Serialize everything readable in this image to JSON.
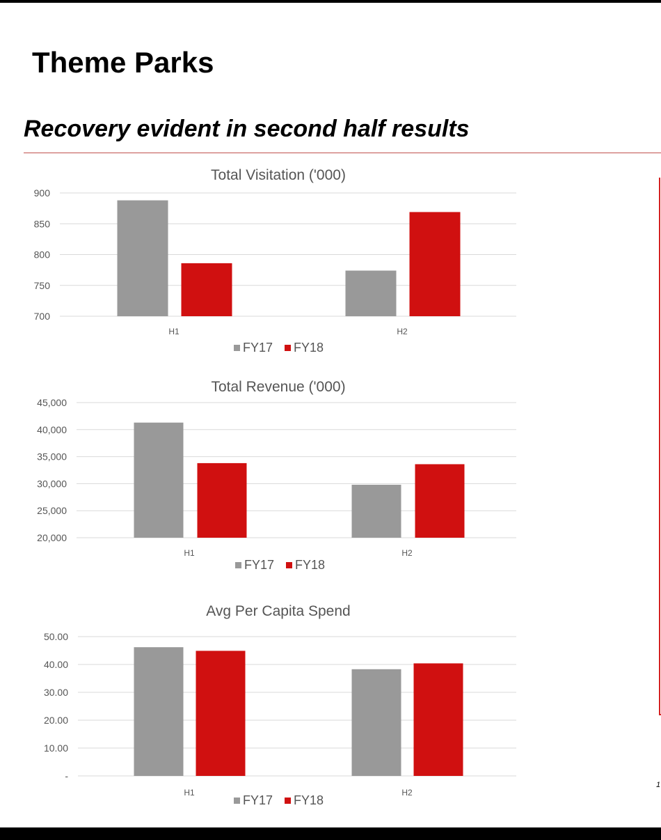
{
  "page": {
    "title": "Theme Parks",
    "subtitle": "Recovery evident in second half results",
    "page_number": "1"
  },
  "colors": {
    "fy17": "#999999",
    "fy18": "#d01010",
    "grid": "#d9d9d9",
    "accent_rule": "#c0504d"
  },
  "chart_data": [
    {
      "type": "bar",
      "title": "Total Visitation ('000)",
      "categories": [
        "H1",
        "H2"
      ],
      "series": [
        {
          "name": "FY17",
          "values": [
            888,
            774
          ]
        },
        {
          "name": "FY18",
          "values": [
            786,
            869
          ]
        }
      ],
      "ylim": [
        700,
        900
      ],
      "yticks": [
        700,
        750,
        800,
        850,
        900
      ],
      "ytick_labels": [
        "700",
        "750",
        "800",
        "850",
        "900"
      ],
      "grid": true,
      "legend": "bottom"
    },
    {
      "type": "bar",
      "title": "Total Revenue  ('000)",
      "categories": [
        "H1",
        "H2"
      ],
      "series": [
        {
          "name": "FY17",
          "values": [
            41300,
            29800
          ]
        },
        {
          "name": "FY18",
          "values": [
            33800,
            33600
          ]
        }
      ],
      "ylim": [
        20000,
        45000
      ],
      "yticks": [
        20000,
        25000,
        30000,
        35000,
        40000,
        45000
      ],
      "ytick_labels": [
        "20,000",
        "25,000",
        "30,000",
        "35,000",
        "40,000",
        "45,000"
      ],
      "grid": true,
      "legend": "bottom"
    },
    {
      "type": "bar",
      "title": "Avg Per Capita Spend",
      "categories": [
        "H1",
        "H2"
      ],
      "series": [
        {
          "name": "FY17",
          "values": [
            46.2,
            38.3
          ]
        },
        {
          "name": "FY18",
          "values": [
            44.9,
            40.4
          ]
        }
      ],
      "ylim": [
        0,
        50
      ],
      "yticks": [
        0,
        10,
        20,
        30,
        40,
        50
      ],
      "ytick_labels": [
        "-",
        "10.00",
        "20.00",
        "30.00",
        "40.00",
        "50.00"
      ],
      "grid": true,
      "legend": "bottom"
    }
  ]
}
